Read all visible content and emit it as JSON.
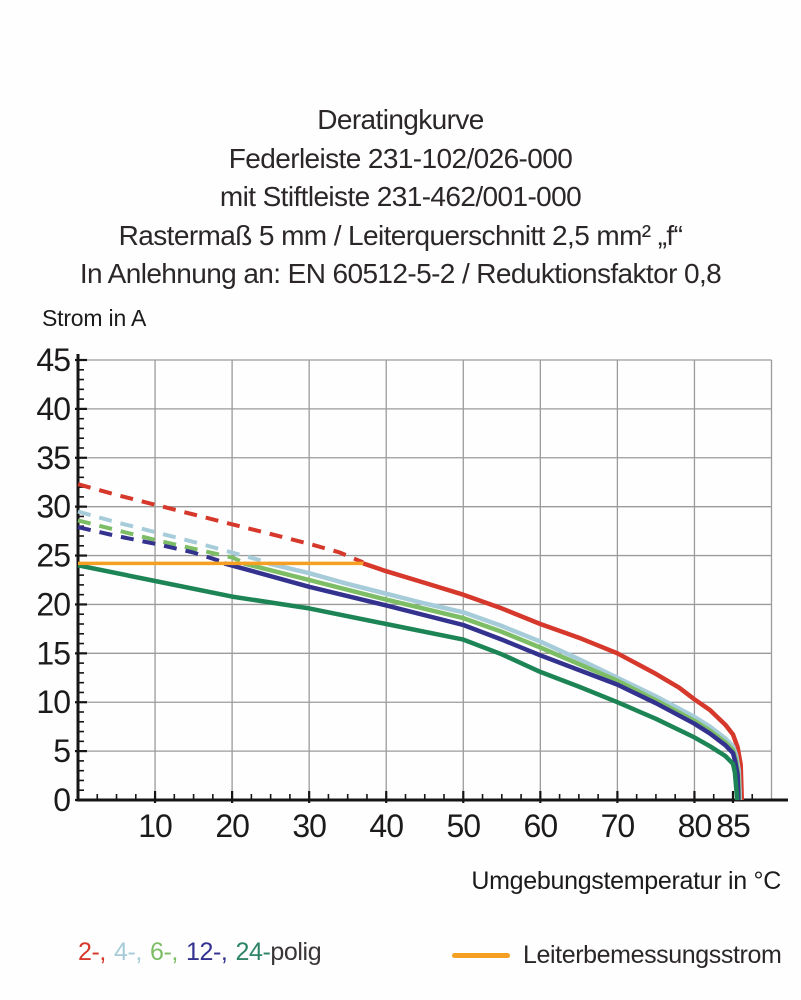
{
  "title": {
    "lines": [
      "Deratingkurve",
      "Federleiste 231-102/026-000",
      "mit Stiftleiste 231-462/001-000",
      "Rastermaß 5 mm / Leiterquerschnitt 2,5 mm² „f“",
      "In Anlehnung an: EN 60512-5-2 / Reduktionsfaktor 0,8"
    ]
  },
  "chart": {
    "y_axis_label": "Strom in A",
    "x_axis_label": "Umgebungstemperatur in °C"
  },
  "chart_data": {
    "type": "line",
    "title": "Deratingkurve",
    "xlabel": "Umgebungstemperatur in °C",
    "ylabel": "Strom in A",
    "xlim": [
      0,
      90
    ],
    "ylim": [
      0,
      45
    ],
    "x_ticks": [
      10,
      20,
      30,
      40,
      50,
      60,
      70,
      80,
      85
    ],
    "y_ticks": [
      0,
      5,
      10,
      15,
      20,
      25,
      30,
      35,
      40,
      45
    ],
    "x_minor_step": 2.5,
    "y_minor_step": 1,
    "grid": true,
    "legend_position": "bottom",
    "grid_color": "#9b9b9b",
    "axis_color": "#161415",
    "series": [
      {
        "name": "2-polig",
        "color": "#d6382b",
        "dashed": [
          [
            0,
            32.3
          ],
          [
            5,
            31.2
          ],
          [
            10,
            30.2
          ],
          [
            15,
            29.2
          ],
          [
            20,
            28.2
          ],
          [
            25,
            27.2
          ],
          [
            30,
            26.2
          ],
          [
            34,
            25.3
          ],
          [
            37,
            24.3
          ]
        ],
        "solid": [
          [
            37,
            24.2
          ],
          [
            40,
            23.4
          ],
          [
            45,
            22.2
          ],
          [
            50,
            21.0
          ],
          [
            55,
            19.6
          ],
          [
            60,
            18.0
          ],
          [
            65,
            16.6
          ],
          [
            70,
            15.0
          ],
          [
            75,
            12.9
          ],
          [
            78,
            11.5
          ],
          [
            80,
            10.3
          ],
          [
            82,
            9.2
          ],
          [
            84,
            7.7
          ],
          [
            85,
            6.7
          ],
          [
            85.6,
            5.4
          ],
          [
            86.0,
            3.6
          ],
          [
            86.15,
            0
          ]
        ]
      },
      {
        "name": "4-polig",
        "color": "#a7ccd9",
        "dashed": [
          [
            0,
            29.5
          ],
          [
            5,
            28.4
          ],
          [
            10,
            27.4
          ],
          [
            15,
            26.4
          ],
          [
            20,
            25.3
          ],
          [
            24.7,
            24.3
          ]
        ],
        "solid": [
          [
            24.7,
            24.2
          ],
          [
            30,
            23.2
          ],
          [
            35,
            22.1
          ],
          [
            40,
            21.1
          ],
          [
            45,
            20.1
          ],
          [
            50,
            19.2
          ],
          [
            55,
            17.8
          ],
          [
            60,
            16.2
          ],
          [
            65,
            14.4
          ],
          [
            70,
            12.5
          ],
          [
            75,
            10.6
          ],
          [
            80,
            8.5
          ],
          [
            82,
            7.5
          ],
          [
            84,
            6.3
          ],
          [
            85,
            5.5
          ],
          [
            85.4,
            4.6
          ],
          [
            85.75,
            3.0
          ],
          [
            85.9,
            0
          ]
        ]
      },
      {
        "name": "6-polig",
        "color": "#7dbd66",
        "dashed": [
          [
            0,
            28.6
          ],
          [
            5,
            27.6
          ],
          [
            10,
            26.6
          ],
          [
            15,
            25.7
          ],
          [
            20,
            24.8
          ],
          [
            21.5,
            24.3
          ]
        ],
        "solid": [
          [
            21.5,
            24.2
          ],
          [
            30,
            22.5
          ],
          [
            40,
            20.5
          ],
          [
            50,
            18.6
          ],
          [
            55,
            17.2
          ],
          [
            60,
            15.6
          ],
          [
            65,
            13.9
          ],
          [
            70,
            12.2
          ],
          [
            75,
            10.2
          ],
          [
            80,
            8.1
          ],
          [
            82,
            7.1
          ],
          [
            84,
            5.9
          ],
          [
            85,
            5.1
          ],
          [
            85.35,
            4.2
          ],
          [
            85.65,
            2.8
          ],
          [
            85.8,
            0
          ]
        ]
      },
      {
        "name": "12-polig",
        "color": "#34328f",
        "dashed": [
          [
            0,
            27.9
          ],
          [
            5,
            27.0
          ],
          [
            10,
            26.2
          ],
          [
            15,
            25.3
          ],
          [
            19,
            24.3
          ]
        ],
        "solid": [
          [
            19,
            24.2
          ],
          [
            30,
            21.8
          ],
          [
            40,
            19.9
          ],
          [
            50,
            17.9
          ],
          [
            55,
            16.4
          ],
          [
            60,
            14.8
          ],
          [
            65,
            13.3
          ],
          [
            70,
            11.8
          ],
          [
            75,
            9.9
          ],
          [
            80,
            7.8
          ],
          [
            82,
            6.8
          ],
          [
            84,
            5.6
          ],
          [
            85,
            4.8
          ],
          [
            85.3,
            3.9
          ],
          [
            85.6,
            2.6
          ],
          [
            85.7,
            0
          ]
        ]
      },
      {
        "name": "24-polig",
        "color": "#1d8555",
        "solid": [
          [
            0,
            24.0
          ],
          [
            10,
            22.4
          ],
          [
            20,
            20.8
          ],
          [
            30,
            19.6
          ],
          [
            40,
            18.0
          ],
          [
            50,
            16.4
          ],
          [
            55,
            14.9
          ],
          [
            60,
            13.1
          ],
          [
            65,
            11.6
          ],
          [
            70,
            10.0
          ],
          [
            75,
            8.3
          ],
          [
            80,
            6.4
          ],
          [
            82,
            5.5
          ],
          [
            84,
            4.5
          ],
          [
            85,
            3.7
          ],
          [
            85.25,
            2.8
          ],
          [
            85.55,
            0
          ]
        ]
      },
      {
        "name": "Leiterbemessungsstrom",
        "color": "#f5a022",
        "width": 3.5,
        "solid": [
          [
            0,
            24.2
          ],
          [
            37,
            24.2
          ]
        ]
      }
    ]
  },
  "legend": {
    "poles": [
      {
        "label": "2-,",
        "color": "#d6382b"
      },
      {
        "label": "4-,",
        "color": "#a7ccd9"
      },
      {
        "label": "6-,",
        "color": "#7dbd66"
      },
      {
        "label": "12-,",
        "color": "#34328f"
      },
      {
        "label": "24-",
        "color": "#2e8566"
      }
    ],
    "suffix": "polig",
    "limit_label": "Leiterbemessungsstrom",
    "limit_color": "#f5a022"
  }
}
